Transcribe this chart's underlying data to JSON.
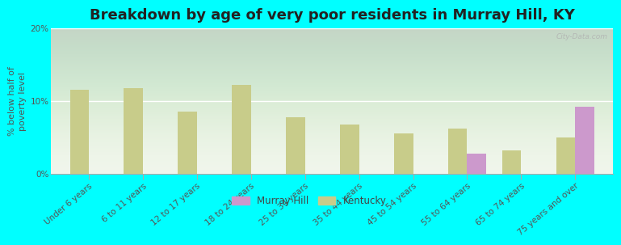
{
  "title": "Breakdown by age of very poor residents in Murray Hill, KY",
  "ylabel": "% below half of\npoverty level",
  "categories": [
    "Under 6 years",
    "6 to 11 years",
    "12 to 17 years",
    "18 to 24 years",
    "25 to 34 years",
    "35 to 44 years",
    "45 to 54 years",
    "55 to 64 years",
    "65 to 74 years",
    "75 years and over"
  ],
  "murray_hill": [
    0,
    0,
    0,
    0,
    0,
    0,
    0,
    2.8,
    0,
    9.2
  ],
  "kentucky": [
    11.5,
    11.8,
    8.5,
    12.2,
    7.8,
    6.8,
    5.5,
    6.2,
    3.2,
    5.0
  ],
  "murray_hill_color": "#cc99cc",
  "kentucky_color": "#c8cc8a",
  "background_outer": "#00ffff",
  "ylim": [
    0,
    20
  ],
  "yticks": [
    0,
    10,
    20
  ],
  "ytick_labels": [
    "0%",
    "10%",
    "20%"
  ],
  "title_fontsize": 13,
  "axis_label_fontsize": 8,
  "tick_fontsize": 7.5,
  "bar_width": 0.35,
  "legend_murray": "Murray Hill",
  "legend_kentucky": "Kentucky"
}
